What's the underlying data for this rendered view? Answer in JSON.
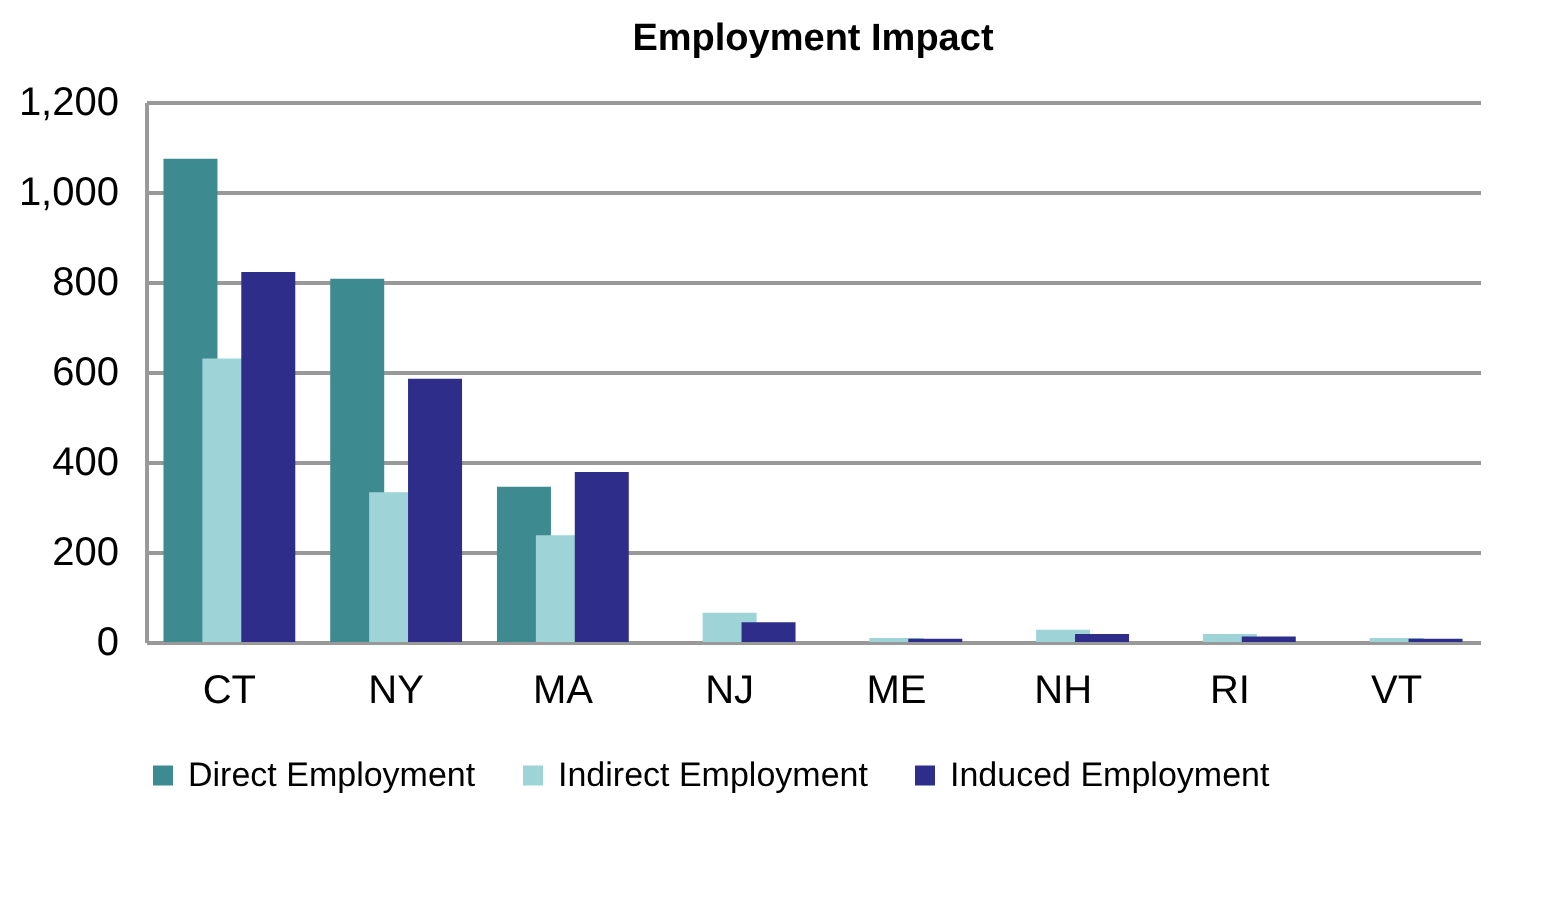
{
  "chart_data": {
    "type": "bar",
    "title": "Employment Impact",
    "categories": [
      "CT",
      "NY",
      "MA",
      "NJ",
      "ME",
      "NH",
      "RI",
      "VT"
    ],
    "series": [
      {
        "name": "Direct Employment",
        "color": "#3d8b91",
        "values": [
          1074,
          807,
          345,
          0,
          0,
          0,
          0,
          0
        ]
      },
      {
        "name": "Indirect Employment",
        "color": "#9ed3d8",
        "values": [
          630,
          333,
          237,
          65,
          9,
          27,
          18,
          9
        ]
      },
      {
        "name": "Induced Employment",
        "color": "#2e2e8a",
        "values": [
          822,
          585,
          378,
          44,
          7,
          18,
          12,
          7
        ]
      }
    ],
    "ylim": [
      0,
      1200
    ],
    "yticks": [
      0,
      200,
      400,
      600,
      800,
      {
        "value": 1000,
        "label": "1,000"
      },
      {
        "value": 1200,
        "label": "1,200"
      }
    ],
    "grid": "y",
    "legend": "bottom"
  }
}
